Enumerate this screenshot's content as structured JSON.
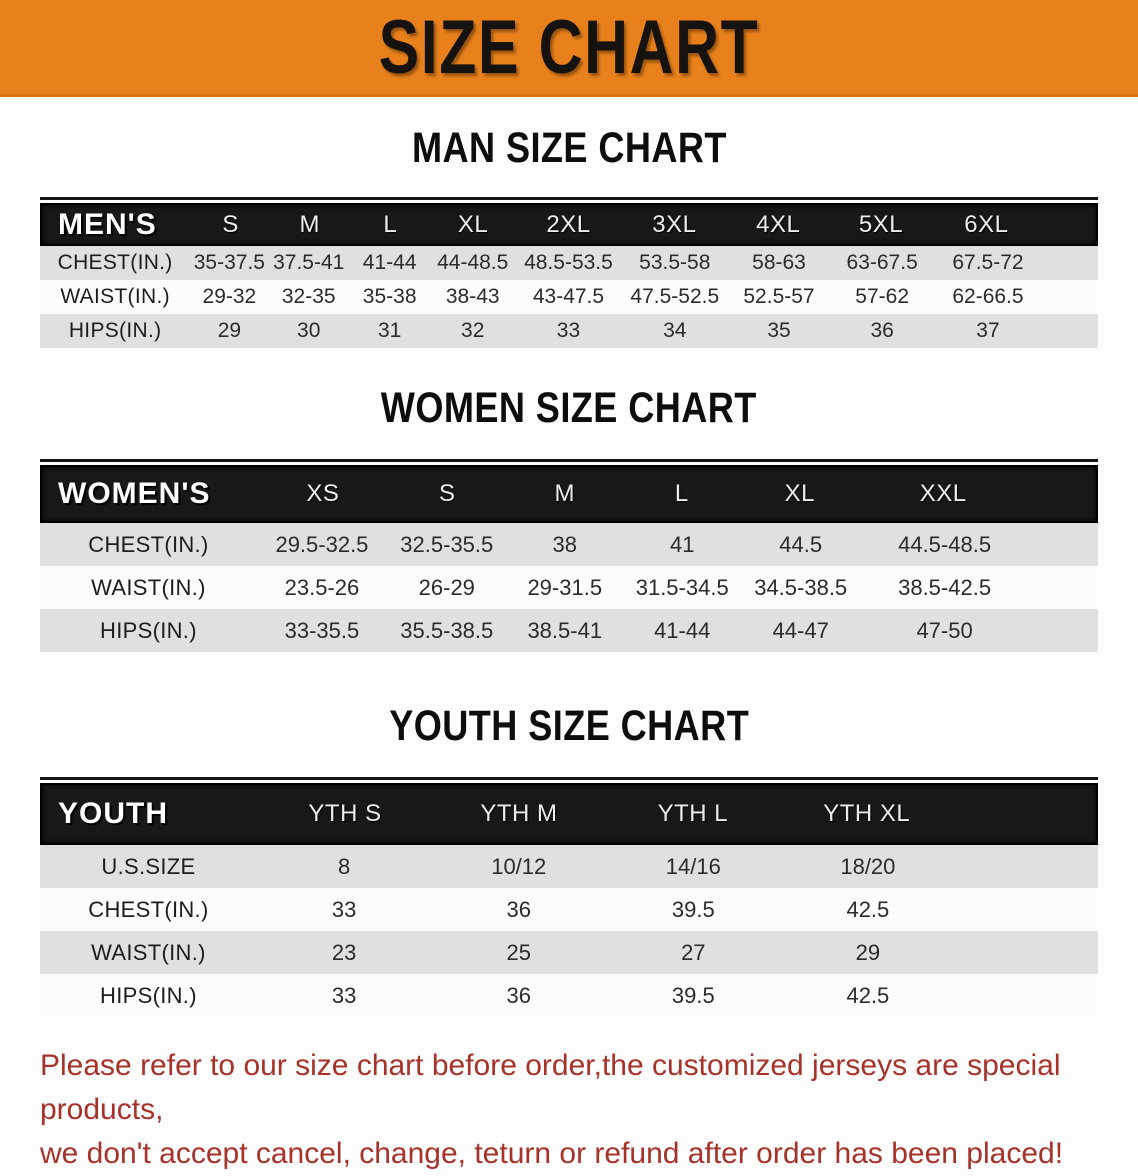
{
  "banner": {
    "title": "SIZE CHART",
    "bg_color": "#E8811B"
  },
  "men": {
    "heading": "MAN SIZE CHART",
    "table": {
      "group_label": "MEN'S",
      "columns": [
        "S",
        "M",
        "L",
        "XL",
        "2XL",
        "3XL",
        "4XL",
        "5XL",
        "6XL"
      ],
      "rows": [
        {
          "label": "CHEST(IN.)",
          "values": [
            "35-37.5",
            "37.5-41",
            "41-44",
            "44-48.5",
            "48.5-53.5",
            "53.5-58",
            "58-63",
            "63-67.5",
            "67.5-72"
          ]
        },
        {
          "label": "WAIST(IN.)",
          "values": [
            "29-32",
            "32-35",
            "35-38",
            "38-43",
            "43-47.5",
            "47.5-52.5",
            "52.5-57",
            "57-62",
            "62-66.5"
          ]
        },
        {
          "label": "HIPS(IN.)",
          "values": [
            "29",
            "30",
            "31",
            "32",
            "33",
            "34",
            "35",
            "36",
            "37"
          ]
        }
      ]
    }
  },
  "women": {
    "heading": "WOMEN SIZE CHART",
    "table": {
      "group_label": "WOMEN'S",
      "columns": [
        "XS",
        "S",
        "M",
        "L",
        "XL",
        "XXL"
      ],
      "rows": [
        {
          "label": "CHEST(IN.)",
          "values": [
            "29.5-32.5",
            "32.5-35.5",
            "38",
            "41",
            "44.5",
            "44.5-48.5"
          ]
        },
        {
          "label": "WAIST(IN.)",
          "values": [
            "23.5-26",
            "26-29",
            "29-31.5",
            "31.5-34.5",
            "34.5-38.5",
            "38.5-42.5"
          ]
        },
        {
          "label": "HIPS(IN.)",
          "values": [
            "33-35.5",
            "35.5-38.5",
            "38.5-41",
            "41-44",
            "44-47",
            "47-50"
          ]
        }
      ]
    }
  },
  "youth": {
    "heading": "YOUTH SIZE CHART",
    "table": {
      "group_label": "YOUTH",
      "columns": [
        "YTH S",
        "YTH M",
        "YTH L",
        "YTH XL"
      ],
      "rows": [
        {
          "label": "U.S.SIZE",
          "values": [
            "8",
            "10/12",
            "14/16",
            "18/20"
          ]
        },
        {
          "label": "CHEST(IN.)",
          "values": [
            "33",
            "36",
            "39.5",
            "42.5"
          ]
        },
        {
          "label": "WAIST(IN.)",
          "values": [
            "23",
            "25",
            "27",
            "29"
          ]
        },
        {
          "label": "HIPS(IN.)",
          "values": [
            "33",
            "36",
            "39.5",
            "42.5"
          ]
        }
      ]
    }
  },
  "footer": {
    "line1": "Please refer to our size chart before order,the customized jerseys are special products,",
    "line2": "we don't accept cancel, change, teturn or refund after order has been placed!",
    "color": "#A6322A"
  }
}
